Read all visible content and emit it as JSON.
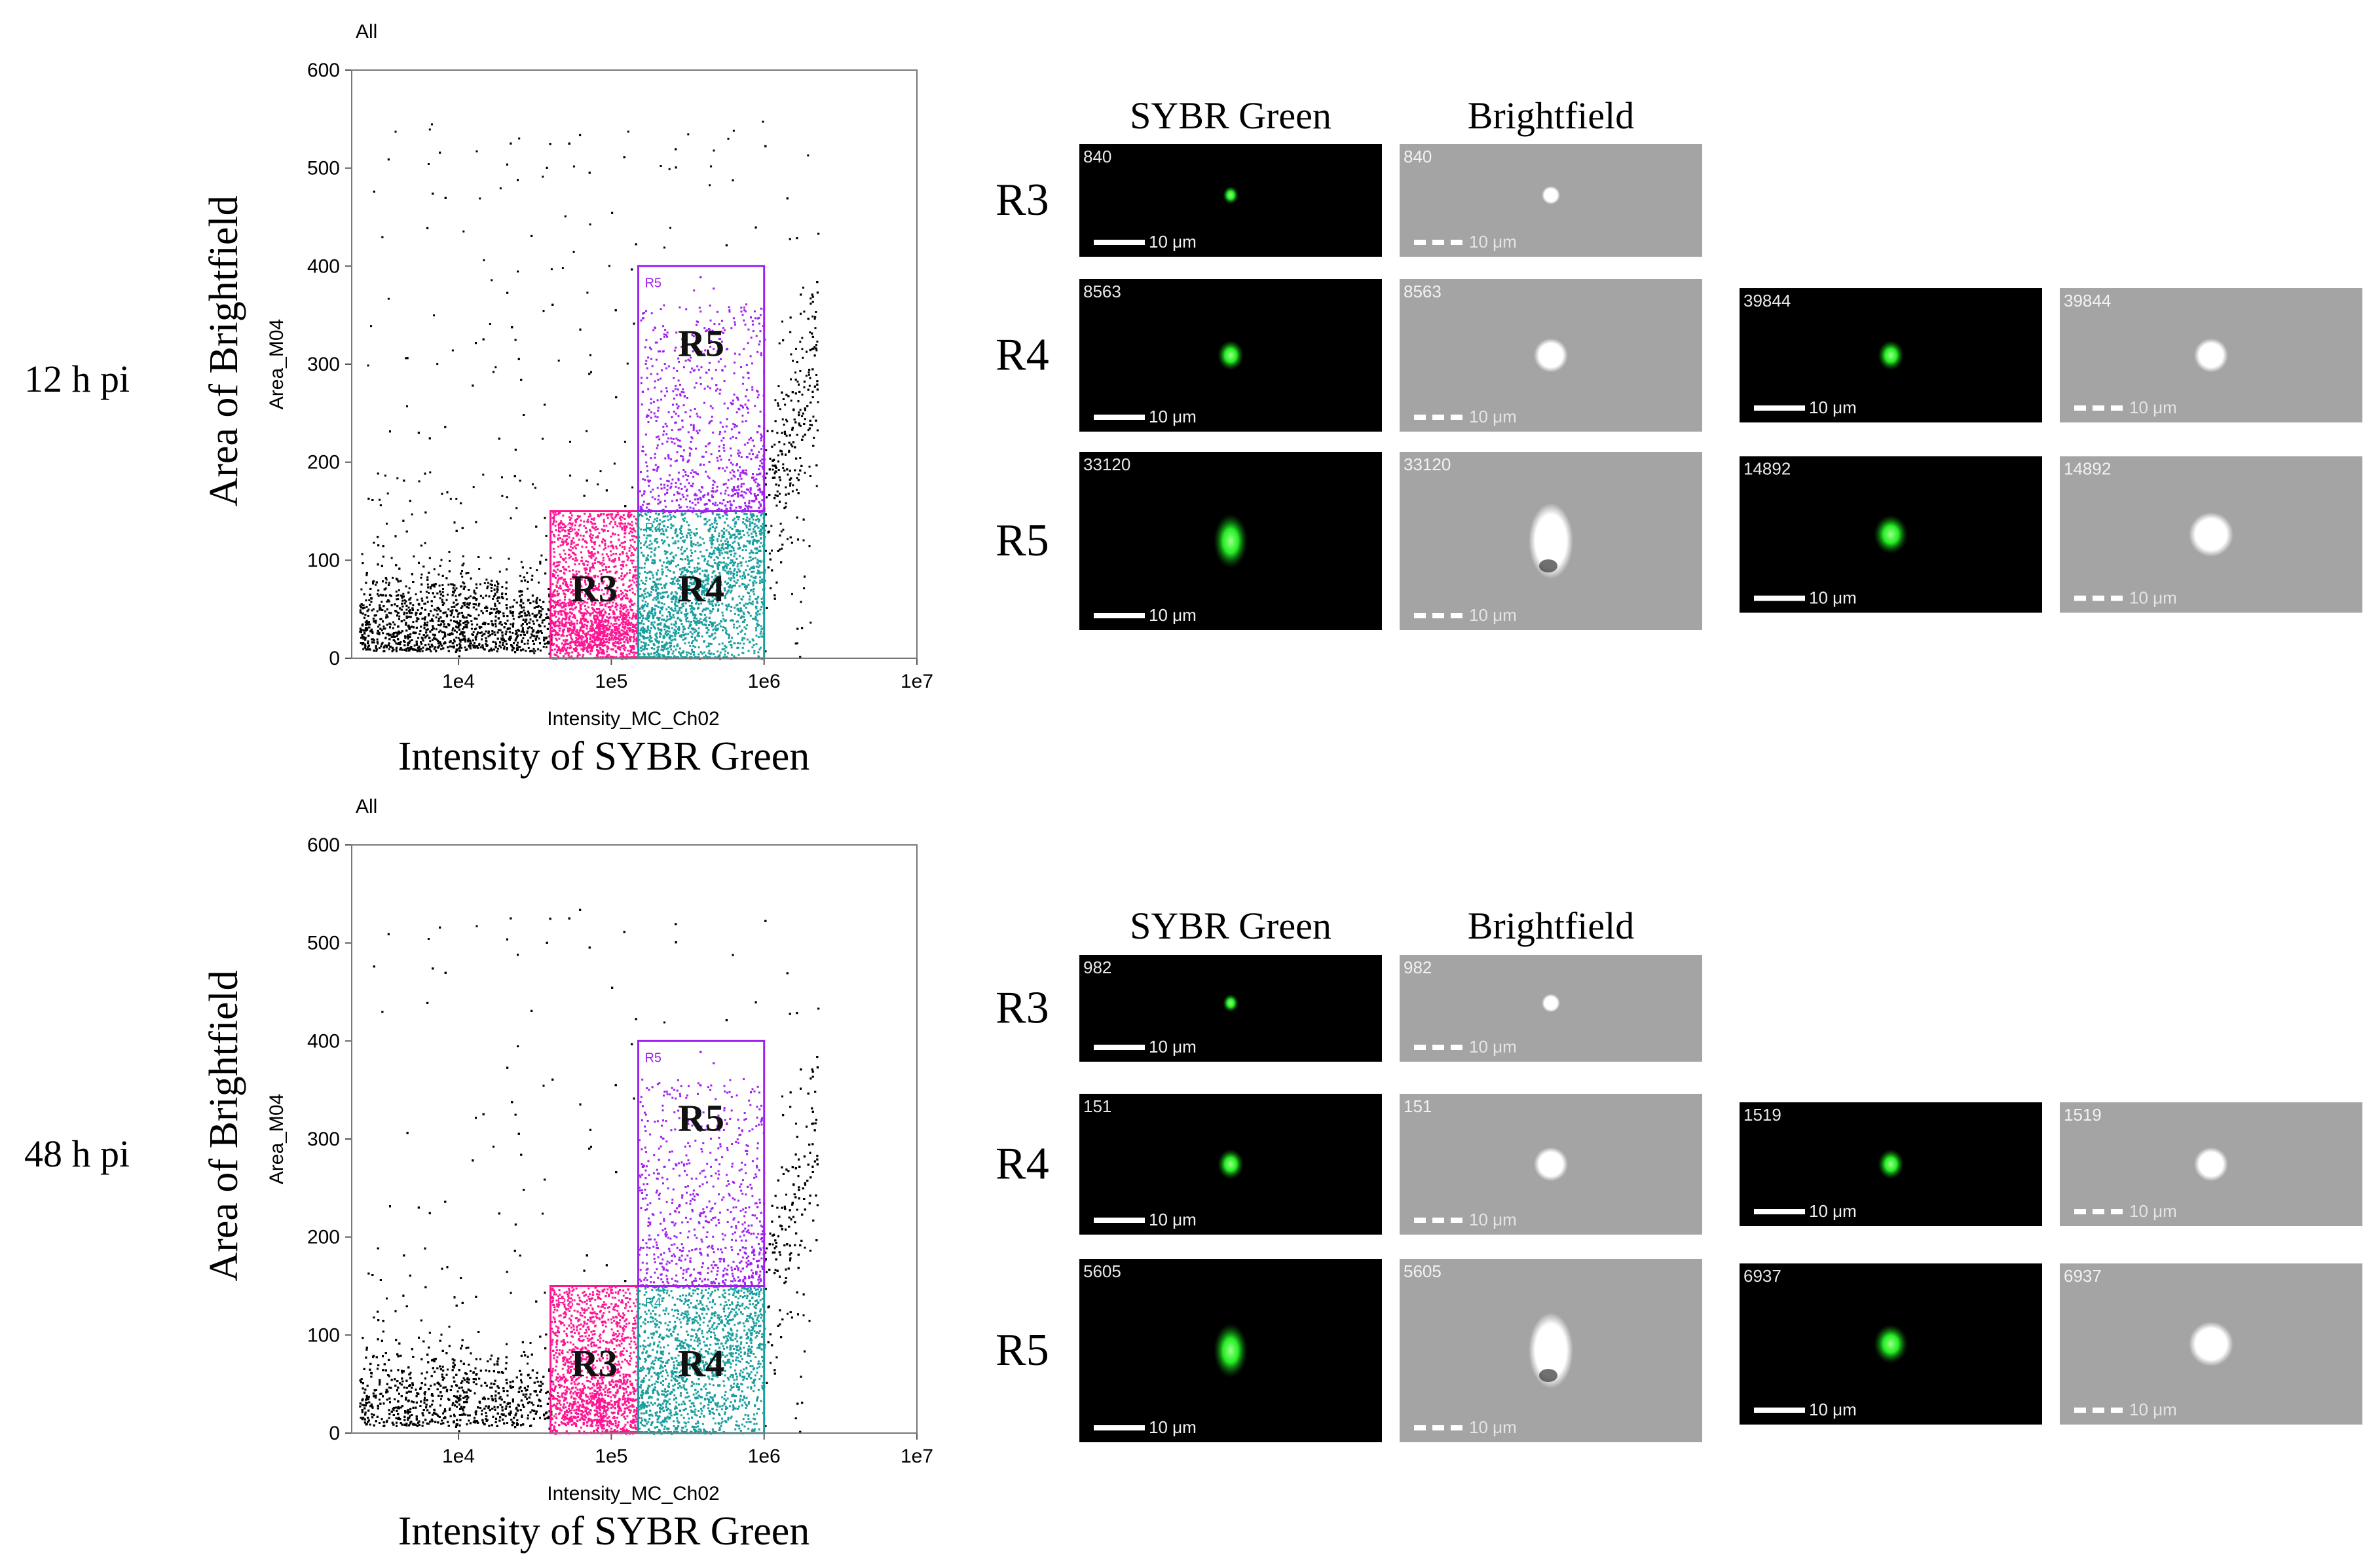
{
  "chart_data": [
    {
      "type": "scatter",
      "condition": "12 h pi",
      "title": "All",
      "xlabel": "Intensity_MC_Ch02",
      "ylabel": "Area_M04",
      "outer_xlabel": "Intensity of SYBR Green",
      "outer_ylabel": "Area of Brightfield",
      "x_scale": "log",
      "xlim": [
        2000,
        10000000
      ],
      "ylim": [
        0,
        600
      ],
      "xticks": [
        "1e4",
        "1e5",
        "1e6",
        "1e7"
      ],
      "yticks": [
        "0",
        "100",
        "200",
        "300",
        "400",
        "500",
        "600"
      ],
      "gates": [
        {
          "name": "R3",
          "x": [
            40000,
            150000
          ],
          "y": [
            0,
            150
          ],
          "color": "#ff1493"
        },
        {
          "name": "R4",
          "x": [
            150000,
            1000000
          ],
          "y": [
            0,
            150
          ],
          "color": "#1a9e9e"
        },
        {
          "name": "R5",
          "x": [
            150000,
            1000000
          ],
          "y": [
            150,
            400
          ],
          "color": "#a020f0"
        }
      ]
    },
    {
      "type": "scatter",
      "condition": "48 h pi",
      "title": "All",
      "xlabel": "Intensity_MC_Ch02",
      "ylabel": "Area_M04",
      "outer_xlabel": "Intensity of SYBR Green",
      "outer_ylabel": "Area of Brightfield",
      "x_scale": "log",
      "xlim": [
        2000,
        10000000
      ],
      "ylim": [
        0,
        600
      ],
      "xticks": [
        "1e4",
        "1e5",
        "1e6",
        "1e7"
      ],
      "yticks": [
        "0",
        "100",
        "200",
        "300",
        "400",
        "500",
        "600"
      ],
      "gates": [
        {
          "name": "R3",
          "x": [
            40000,
            150000
          ],
          "y": [
            0,
            150
          ],
          "color": "#ff1493"
        },
        {
          "name": "R4",
          "x": [
            150000,
            1000000
          ],
          "y": [
            0,
            150
          ],
          "color": "#1a9e9e"
        },
        {
          "name": "R5",
          "x": [
            150000,
            1000000
          ],
          "y": [
            150,
            400
          ],
          "color": "#a020f0"
        }
      ]
    }
  ],
  "colors": {
    "R3": "#ff1493",
    "R4": "#1a9e9e",
    "R5": "#a020f0",
    "events": "#000000",
    "sybr_cell": "#22ee22",
    "brightfield_bg": "#a4a4a4"
  },
  "image_gallery": {
    "scale_label": "10 μm",
    "column_headers": [
      "SYBR Green",
      "Brightfield"
    ],
    "panels": [
      {
        "condition": "12 h pi",
        "rows": [
          {
            "region": "R3",
            "events": [
              "840"
            ]
          },
          {
            "region": "R4",
            "events": [
              "8563",
              "39844"
            ]
          },
          {
            "region": "R5",
            "events": [
              "33120",
              "14892"
            ]
          }
        ]
      },
      {
        "condition": "48 h pi",
        "rows": [
          {
            "region": "R3",
            "events": [
              "982"
            ]
          },
          {
            "region": "R4",
            "events": [
              "151",
              "1519"
            ]
          },
          {
            "region": "R5",
            "events": [
              "5605",
              "6937"
            ]
          }
        ]
      }
    ]
  }
}
